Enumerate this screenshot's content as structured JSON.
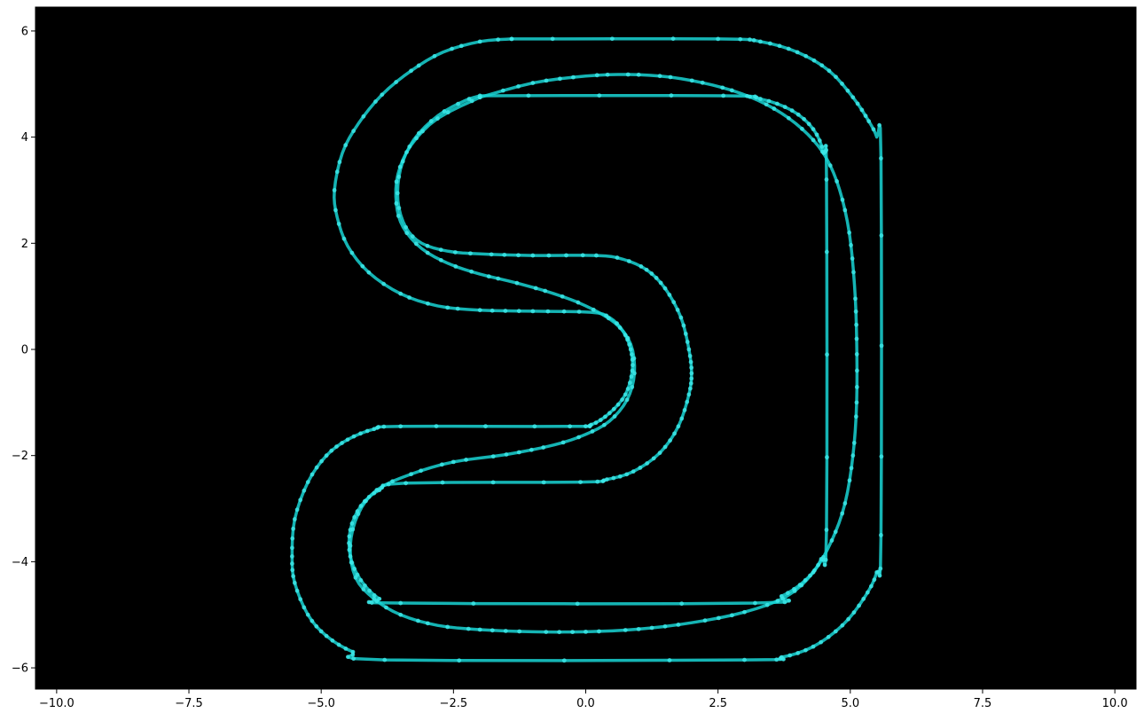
{
  "chart_data": {
    "type": "line",
    "title": "",
    "xlabel": "",
    "ylabel": "",
    "xlim": [
      -10.4,
      10.4
    ],
    "ylim": [
      -6.4,
      6.45
    ],
    "xticks": [
      {
        "value": -10.0,
        "label": "−10.0"
      },
      {
        "value": -7.5,
        "label": "−7.5"
      },
      {
        "value": -5.0,
        "label": "−5.0"
      },
      {
        "value": -2.5,
        "label": "−2.5"
      },
      {
        "value": 0.0,
        "label": "0.0"
      },
      {
        "value": 2.5,
        "label": "2.5"
      },
      {
        "value": 5.0,
        "label": "5.0"
      },
      {
        "value": 7.5,
        "label": "7.5"
      },
      {
        "value": 10.0,
        "label": "10.0"
      }
    ],
    "yticks": [
      {
        "value": -6,
        "label": "−6"
      },
      {
        "value": -4,
        "label": "−4"
      },
      {
        "value": -2,
        "label": "−2"
      },
      {
        "value": 0,
        "label": "0"
      },
      {
        "value": 2,
        "label": "2"
      },
      {
        "value": 4,
        "label": "4"
      },
      {
        "value": 6,
        "label": "6"
      }
    ],
    "grid": false,
    "background": "#000000",
    "series_color": "#19d3d3",
    "marker_color": "#3ee8e8",
    "series": [
      {
        "points": [
          [
            -1.4,
            5.85
          ],
          [
            2.5,
            5.85
          ],
          [
            3.3,
            5.8
          ],
          [
            4.0,
            5.6
          ],
          [
            4.6,
            5.25
          ],
          [
            5.05,
            4.75
          ],
          [
            5.35,
            4.3
          ],
          [
            5.5,
            4.0
          ],
          [
            5.58,
            3.6
          ],
          [
            5.58,
            -3.5
          ],
          [
            5.5,
            -4.2
          ],
          [
            5.25,
            -4.7
          ],
          [
            4.85,
            -5.2
          ],
          [
            4.3,
            -5.6
          ],
          [
            3.7,
            -5.8
          ],
          [
            3.0,
            -5.85
          ],
          [
            -3.8,
            -5.85
          ],
          [
            -4.4,
            -5.7
          ],
          [
            -4.9,
            -5.4
          ],
          [
            -5.25,
            -5.0
          ],
          [
            -5.5,
            -4.4
          ],
          [
            -5.55,
            -3.9
          ],
          [
            -5.5,
            -3.2
          ],
          [
            -5.25,
            -2.5
          ],
          [
            -4.9,
            -2.0
          ],
          [
            -4.5,
            -1.7
          ],
          [
            -4.0,
            -1.5
          ],
          [
            -3.5,
            -1.45
          ],
          [
            -0.3,
            -1.45
          ],
          [
            0.1,
            -1.42
          ],
          [
            0.45,
            -1.2
          ],
          [
            0.75,
            -0.85
          ],
          [
            0.88,
            -0.4
          ],
          [
            0.85,
            0.0
          ],
          [
            0.7,
            0.35
          ],
          [
            0.45,
            0.6
          ],
          [
            0.1,
            0.7
          ],
          [
            -1.0,
            0.72
          ],
          [
            -2.0,
            0.74
          ],
          [
            -2.8,
            0.82
          ],
          [
            -3.5,
            1.05
          ],
          [
            -4.1,
            1.45
          ],
          [
            -4.5,
            1.95
          ],
          [
            -4.7,
            2.5
          ],
          [
            -4.75,
            3.0
          ],
          [
            -4.6,
            3.7
          ],
          [
            -4.3,
            4.25
          ],
          [
            -3.85,
            4.8
          ],
          [
            -3.3,
            5.25
          ],
          [
            -2.7,
            5.6
          ],
          [
            -2.0,
            5.8
          ],
          [
            -1.4,
            5.85
          ]
        ]
      },
      {
        "points": [
          [
            -2.0,
            4.78
          ],
          [
            2.6,
            4.78
          ],
          [
            3.3,
            4.72
          ],
          [
            3.9,
            4.5
          ],
          [
            4.3,
            4.15
          ],
          [
            4.5,
            3.7
          ],
          [
            4.55,
            3.2
          ],
          [
            4.55,
            -3.4
          ],
          [
            4.45,
            -3.95
          ],
          [
            4.15,
            -4.35
          ],
          [
            3.7,
            -4.65
          ],
          [
            3.2,
            -4.78
          ],
          [
            -3.5,
            -4.78
          ],
          [
            -3.9,
            -4.7
          ],
          [
            -4.25,
            -4.35
          ],
          [
            -4.45,
            -3.9
          ],
          [
            -4.45,
            -3.4
          ],
          [
            -4.25,
            -2.95
          ],
          [
            -3.9,
            -2.65
          ],
          [
            -3.4,
            -2.52
          ],
          [
            -0.1,
            -2.5
          ],
          [
            0.4,
            -2.45
          ],
          [
            0.9,
            -2.3
          ],
          [
            1.4,
            -1.95
          ],
          [
            1.75,
            -1.45
          ],
          [
            1.95,
            -0.85
          ],
          [
            2.0,
            -0.45
          ],
          [
            1.95,
            0.0
          ],
          [
            1.8,
            0.6
          ],
          [
            1.5,
            1.15
          ],
          [
            1.15,
            1.5
          ],
          [
            0.7,
            1.7
          ],
          [
            0.2,
            1.77
          ],
          [
            -1.0,
            1.77
          ],
          [
            -2.0,
            1.8
          ],
          [
            -2.6,
            1.85
          ],
          [
            -3.1,
            2.0
          ],
          [
            -3.4,
            2.3
          ],
          [
            -3.55,
            2.8
          ],
          [
            -3.5,
            3.4
          ],
          [
            -3.25,
            3.95
          ],
          [
            -2.8,
            4.4
          ],
          [
            -2.3,
            4.68
          ],
          [
            -2.0,
            4.78
          ]
        ]
      },
      {
        "points": [
          [
            -2.0,
            4.75
          ],
          [
            -1.0,
            5.02
          ],
          [
            0.0,
            5.15
          ],
          [
            0.8,
            5.18
          ],
          [
            1.6,
            5.13
          ],
          [
            2.4,
            4.98
          ],
          [
            3.1,
            4.76
          ],
          [
            3.7,
            4.45
          ],
          [
            4.2,
            4.05
          ],
          [
            4.55,
            3.6
          ],
          [
            4.8,
            3.0
          ],
          [
            4.98,
            2.2
          ],
          [
            5.08,
            1.2
          ],
          [
            5.12,
            0.2
          ],
          [
            5.12,
            -1.0
          ],
          [
            5.05,
            -2.0
          ],
          [
            4.9,
            -2.9
          ],
          [
            4.65,
            -3.6
          ],
          [
            4.3,
            -4.2
          ],
          [
            3.8,
            -4.65
          ],
          [
            3.0,
            -4.95
          ],
          [
            2.0,
            -5.15
          ],
          [
            1.0,
            -5.27
          ],
          [
            0.0,
            -5.32
          ],
          [
            -1.0,
            -5.32
          ],
          [
            -2.0,
            -5.28
          ],
          [
            -2.8,
            -5.2
          ],
          [
            -3.5,
            -5.0
          ],
          [
            -4.0,
            -4.7
          ],
          [
            -4.35,
            -4.3
          ],
          [
            -4.45,
            -3.7
          ],
          [
            -4.3,
            -3.1
          ],
          [
            -3.95,
            -2.65
          ],
          [
            -3.3,
            -2.35
          ],
          [
            -2.5,
            -2.12
          ],
          [
            -1.5,
            -1.98
          ],
          [
            -0.6,
            -1.8
          ],
          [
            0.0,
            -1.6
          ],
          [
            0.45,
            -1.35
          ],
          [
            0.78,
            -0.95
          ],
          [
            0.92,
            -0.45
          ],
          [
            0.85,
            0.1
          ],
          [
            0.55,
            0.5
          ],
          [
            0.0,
            0.82
          ],
          [
            -0.6,
            1.05
          ],
          [
            -1.3,
            1.25
          ],
          [
            -2.0,
            1.42
          ],
          [
            -2.6,
            1.62
          ],
          [
            -3.1,
            1.9
          ],
          [
            -3.45,
            2.3
          ],
          [
            -3.58,
            2.75
          ],
          [
            -3.55,
            3.3
          ],
          [
            -3.3,
            3.85
          ],
          [
            -2.8,
            4.35
          ],
          [
            -2.0,
            4.75
          ]
        ]
      }
    ]
  }
}
